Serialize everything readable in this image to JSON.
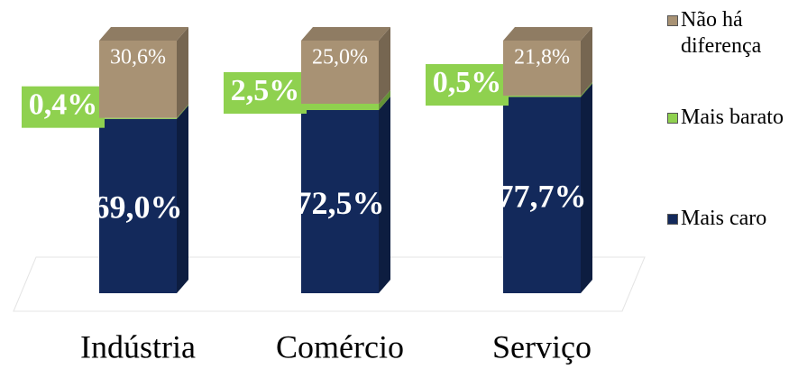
{
  "chart_data": {
    "type": "stacked-bar",
    "categories": [
      "Indústria",
      "Comércio",
      "Serviço"
    ],
    "series": [
      {
        "name": "Mais caro",
        "color": "#13295b",
        "values": [
          69.0,
          72.5,
          77.7
        ],
        "value_labels": [
          "69,0%",
          "72,5%",
          "77,7%"
        ]
      },
      {
        "name": "Mais barato",
        "color": "#8fd14f",
        "values": [
          0.4,
          2.5,
          0.5
        ],
        "value_labels": [
          "0,4%",
          "2,5%",
          "0,5%"
        ]
      },
      {
        "name": "Não há diferença",
        "color": "#a89274",
        "values": [
          30.6,
          25.0,
          21.8
        ],
        "value_labels": [
          "30,6%",
          "25,0%",
          "21,8%"
        ]
      }
    ]
  }
}
